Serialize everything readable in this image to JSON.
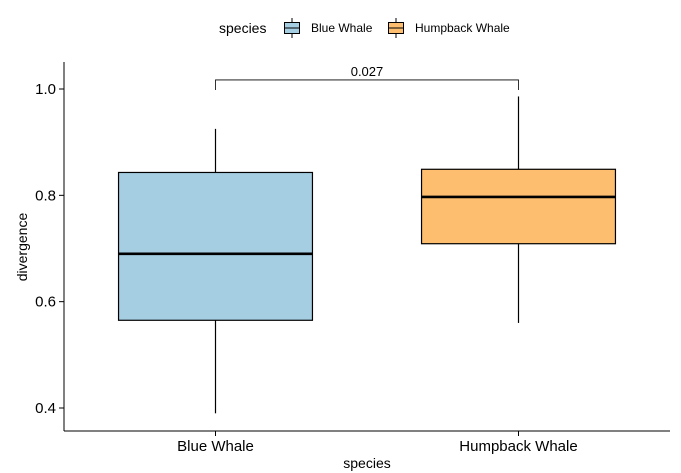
{
  "chart_data": {
    "type": "box",
    "xlabel": "species",
    "ylabel": "divergence",
    "categories": [
      "Blue Whale",
      "Humpback Whale"
    ],
    "ylim": [
      0.36,
      1.05
    ],
    "yticks": [
      0.4,
      0.6,
      0.8,
      1.0
    ],
    "ytick_labels": [
      "0.4",
      "0.6",
      "0.8",
      "1.0"
    ],
    "grid": false,
    "legend": {
      "title": "species",
      "position": "top",
      "entries": [
        "Blue Whale",
        "Humpback Whale"
      ]
    },
    "series": [
      {
        "name": "Blue Whale",
        "min": 0.39,
        "q1": 0.565,
        "median": 0.69,
        "q3": 0.843,
        "max": 0.925,
        "color": "#a6cee3"
      },
      {
        "name": "Humpback Whale",
        "min": 0.56,
        "q1": 0.709,
        "median": 0.797,
        "q3": 0.849,
        "max": 0.986,
        "color": "#fdbf6f"
      }
    ],
    "annotations": [
      {
        "text": "0.027",
        "from": "Blue Whale",
        "to": "Humpback Whale",
        "y": 1.017
      }
    ]
  }
}
